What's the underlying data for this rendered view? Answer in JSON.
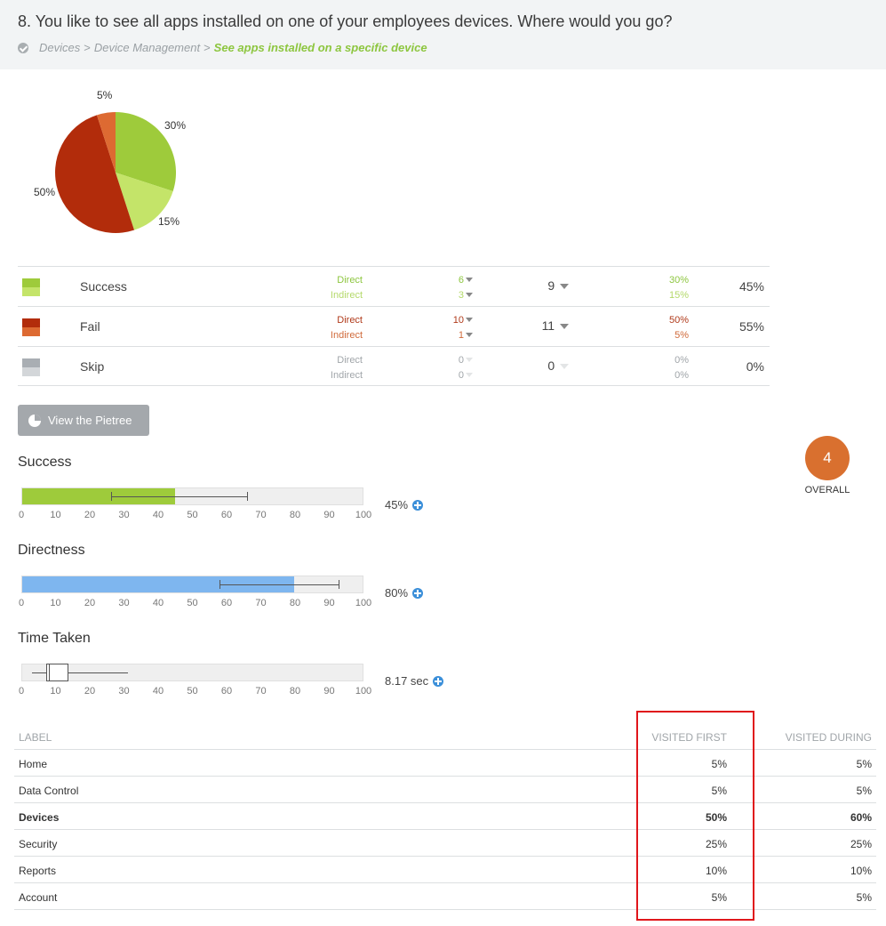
{
  "question": {
    "title": "8. You like to see all apps installed on one of your employees devices. Where would you go?",
    "breadcrumb": [
      "Devices",
      "Device Management"
    ],
    "breadcrumb_sep": ">",
    "target": "See apps installed on a specific device"
  },
  "pie": {
    "labels": [
      "30%",
      "15%",
      "50%",
      "5%"
    ],
    "slices": [
      {
        "name": "Success Direct",
        "value": 30,
        "color": "#9ecb3b"
      },
      {
        "name": "Success Indirect",
        "value": 15,
        "color": "#c4e469"
      },
      {
        "name": "Fail Direct",
        "value": 50,
        "color": "#b22c0b"
      },
      {
        "name": "Fail Indirect",
        "value": 5,
        "color": "#dd6a32"
      }
    ]
  },
  "summary": [
    {
      "name": "Success",
      "colors": [
        "#9ecb3b",
        "#c4e469"
      ],
      "sub_colors": [
        "#8dc63f",
        "#b4d96a"
      ],
      "labels": [
        "Direct",
        "Indirect"
      ],
      "counts": [
        "6",
        "3"
      ],
      "total": "9",
      "pcts": [
        "30%",
        "15%"
      ],
      "overall": "45%"
    },
    {
      "name": "Fail",
      "colors": [
        "#b22c0b",
        "#dd6a32"
      ],
      "sub_colors": [
        "#b03a1a",
        "#d06a3a"
      ],
      "labels": [
        "Direct",
        "Indirect"
      ],
      "counts": [
        "10",
        "1"
      ],
      "total": "11",
      "pcts": [
        "50%",
        "5%"
      ],
      "overall": "55%"
    },
    {
      "name": "Skip",
      "colors": [
        "#a9aeb3",
        "#d3d6d9"
      ],
      "sub_colors": [
        "#a0a5a9",
        "#a0a5a9"
      ],
      "labels": [
        "Direct",
        "Indirect"
      ],
      "counts": [
        "0",
        "0"
      ],
      "total": "0",
      "pcts": [
        "0%",
        "0%"
      ],
      "overall": "0%"
    }
  ],
  "pietree_button": "View the Pietree",
  "axis_ticks": [
    "0",
    "10",
    "20",
    "30",
    "40",
    "50",
    "60",
    "70",
    "80",
    "90",
    "100"
  ],
  "metrics": {
    "success": {
      "title": "Success",
      "value_text": "45%",
      "fill_pct": 45,
      "ci_low": 26,
      "ci_high": 66,
      "color": "#9ecb3b"
    },
    "directness": {
      "title": "Directness",
      "value_text": "80%",
      "fill_pct": 80,
      "ci_low": 58,
      "ci_high": 93,
      "color": "#7eb6ef"
    },
    "time": {
      "title": "Time Taken",
      "value_text": "8.17 sec",
      "whisker_low": 3,
      "q1": 7,
      "q3": 13.5,
      "median": 7.5,
      "whisker_high": 31
    }
  },
  "overall": {
    "score": "4",
    "label": "OVERALL"
  },
  "visits": {
    "headers": {
      "label": "LABEL",
      "first": "VISITED FIRST",
      "during": "VISITED DURING"
    },
    "rows": [
      {
        "label": "Home",
        "first": "5%",
        "during": "5%",
        "bold": false
      },
      {
        "label": "Data Control",
        "first": "5%",
        "during": "5%",
        "bold": false
      },
      {
        "label": "Devices",
        "first": "50%",
        "during": "60%",
        "bold": true
      },
      {
        "label": "Security",
        "first": "25%",
        "during": "25%",
        "bold": false
      },
      {
        "label": "Reports",
        "first": "10%",
        "during": "10%",
        "bold": false
      },
      {
        "label": "Account",
        "first": "5%",
        "during": "5%",
        "bold": false
      }
    ]
  },
  "highlight_color": "#e0161b"
}
